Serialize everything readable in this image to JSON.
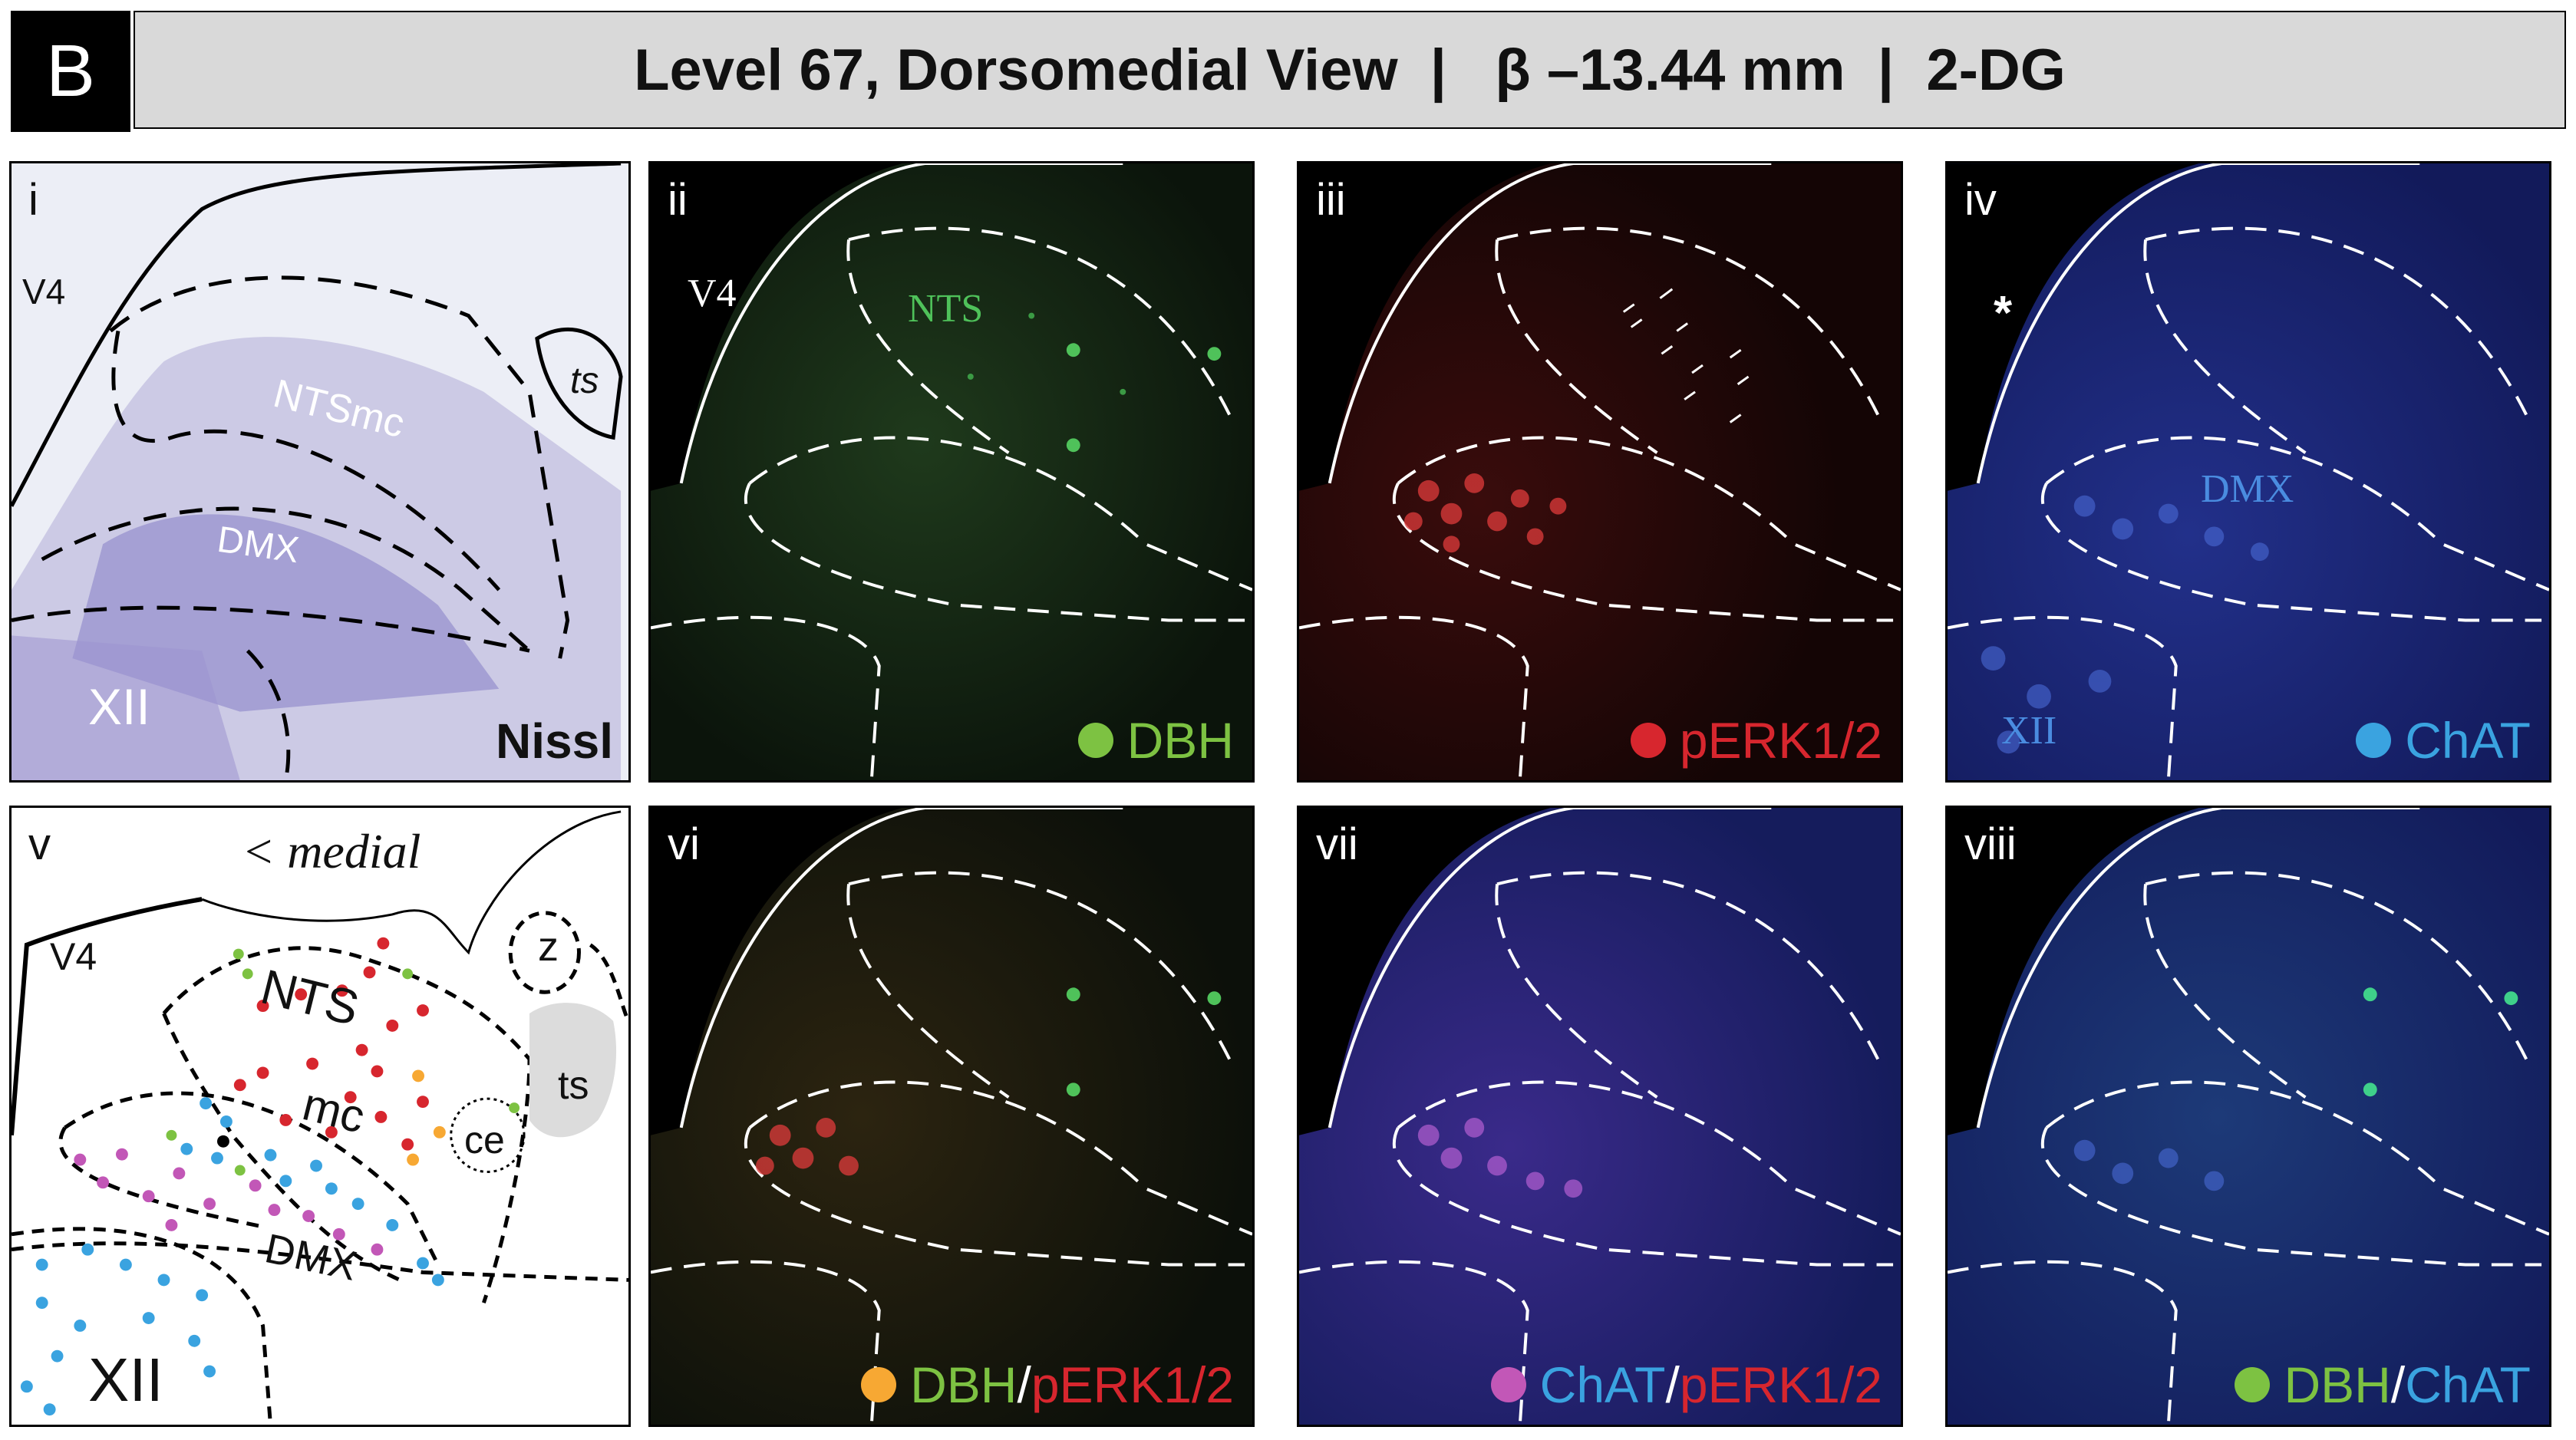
{
  "header": {
    "letter": "B",
    "title": "Level 67, Dorsomedial View  |   β –13.44 mm  |  2-DG"
  },
  "colors": {
    "dbh": "#7dc242",
    "perk": "#d7262e",
    "chat": "#3aa3e0",
    "overlap_dbh_perk": "#f7a833",
    "overlap_chat_perk": "#c257b7",
    "black_dot": "#000000"
  },
  "panels": {
    "i": {
      "label": "i",
      "regions": {
        "v4": "V4",
        "ts": "ts",
        "ntsmc": "NTSmc",
        "dmx": "DMX",
        "xii": "XII"
      },
      "stain": "Nissl"
    },
    "ii": {
      "label": "ii",
      "regions": {
        "v4": "V4",
        "nts": "NTS"
      },
      "legend": "DBH"
    },
    "iii": {
      "label": "iii",
      "legend": "pERK1/2"
    },
    "iv": {
      "label": "iv",
      "asterisk": "*",
      "regions": {
        "dmx": "DMX",
        "xii": "XII"
      },
      "legend": "ChAT"
    },
    "v": {
      "label": "v",
      "orientation": "< medial",
      "regions": {
        "v4": "V4",
        "nts": "NTS",
        "mc": "mc",
        "dmx": "DMX",
        "xii": "XII",
        "z": "z",
        "ts": "ts",
        "ce": "ce"
      }
    },
    "vi": {
      "label": "vi",
      "legend_a": "DBH",
      "legend_sep": "/",
      "legend_b": "pERK1/2"
    },
    "vii": {
      "label": "vii",
      "legend_a": "ChAT",
      "legend_sep": "/",
      "legend_b": "pERK1/2"
    },
    "viii": {
      "label": "viii",
      "legend_a": "DBH",
      "legend_sep": "/",
      "legend_b": "ChAT"
    }
  }
}
